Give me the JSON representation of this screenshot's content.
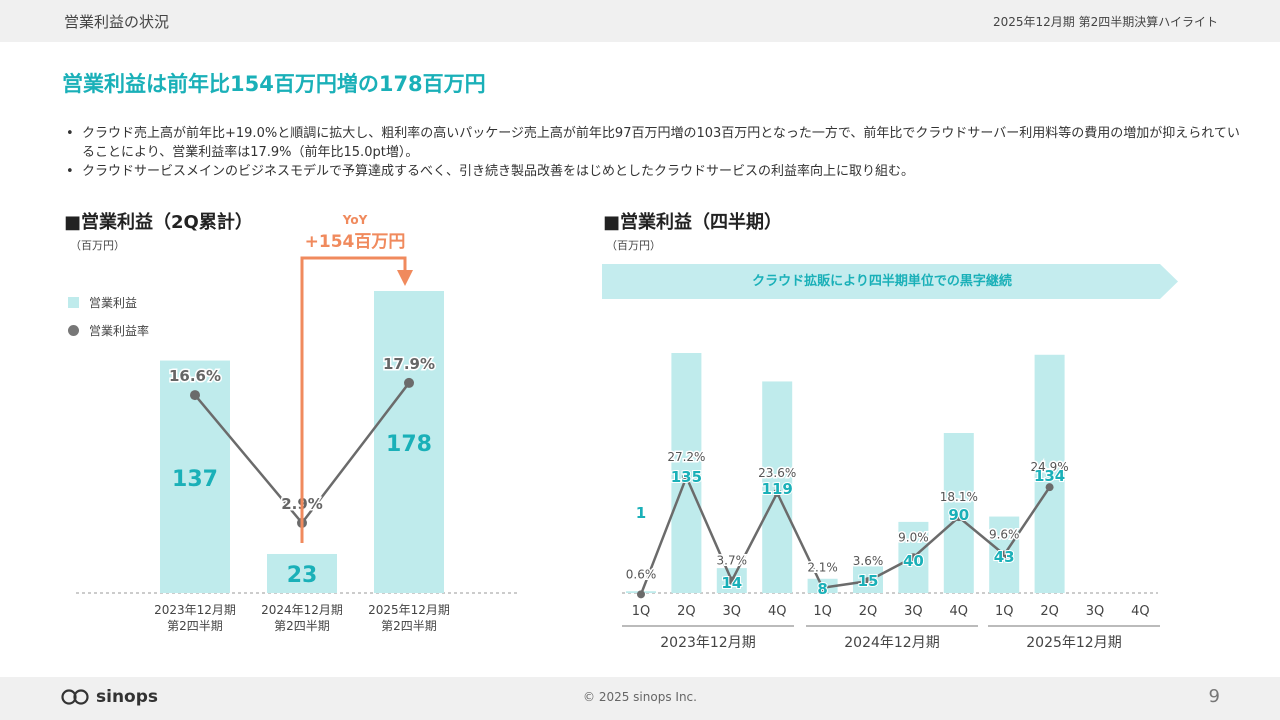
{
  "header": {
    "section_title": "営業利益の状況",
    "period_label": "2025年12月期 第2四半期決算ハイライト"
  },
  "headline": "営業利益は前年比154百万円増の178百万円",
  "bullets": [
    "クラウド売上高が前年比+19.0%と順調に拡大し、粗利率の高いパッケージ売上高が前年比97百万円増の103百万円となった一方で、前年比でクラウドサーバー利用料等の費用の増加が抑えられていることにより、営業利益率は17.9%（前年比15.0pt増）。",
    "クラウドサービスメインのビジネスモデルで予算達成するべく、引き続き製品改善をはじめとしたクラウドサービスの利益率向上に取り組む。"
  ],
  "left_panel": {
    "title": "■営業利益（2Q累計）",
    "unit": "（百万円）",
    "legend": {
      "bar": "営業利益",
      "line": "営業利益率"
    },
    "yoy": {
      "label": "YoY",
      "value": "+154百万円"
    }
  },
  "right_panel": {
    "title": "■営業利益（四半期）",
    "unit": "（百万円）",
    "banner": "クラウド拡販により四半期単位での黒字継続"
  },
  "colors": {
    "bar": "#bfebec",
    "value_text": "#1ab0b8",
    "line": "#6b6b6b",
    "accent": "#f08a5d",
    "banner": "#c4ecee"
  },
  "chart_data": [
    {
      "type": "bar",
      "categories": [
        "2023年12月期\n第2四半期",
        "2024年12月期\n第2四半期",
        "2025年12月期\n第2四半期"
      ],
      "series": [
        {
          "name": "営業利益",
          "values": [
            137,
            23,
            178
          ]
        },
        {
          "name": "営業利益率",
          "values": [
            "16.6%",
            "2.9%",
            "17.9%"
          ],
          "numeric": [
            16.6,
            2.9,
            17.9
          ]
        }
      ]
    },
    {
      "type": "bar",
      "categories": [
        "1Q",
        "2Q",
        "3Q",
        "4Q",
        "1Q",
        "2Q",
        "3Q",
        "4Q",
        "1Q",
        "2Q",
        "3Q",
        "4Q"
      ],
      "groups": [
        "2023年12月期",
        "2024年12月期",
        "2025年12月期"
      ],
      "series": [
        {
          "name": "営業利益",
          "values": [
            1,
            135,
            14,
            119,
            8,
            15,
            40,
            90,
            43,
            134,
            null,
            null
          ]
        },
        {
          "name": "営業利益率",
          "values": [
            "0.6%",
            "27.2%",
            "3.7%",
            "23.6%",
            "2.1%",
            "3.6%",
            "9.0%",
            "18.1%",
            "9.6%",
            "24.9%",
            null,
            null
          ],
          "numeric": [
            0.6,
            27.2,
            3.7,
            23.6,
            2.1,
            3.6,
            9.0,
            18.1,
            9.6,
            24.9,
            null,
            null
          ]
        }
      ]
    }
  ],
  "footer": {
    "logo_text": "sinops",
    "copyright": "© 2025 sinops Inc.",
    "page_number": "9"
  }
}
